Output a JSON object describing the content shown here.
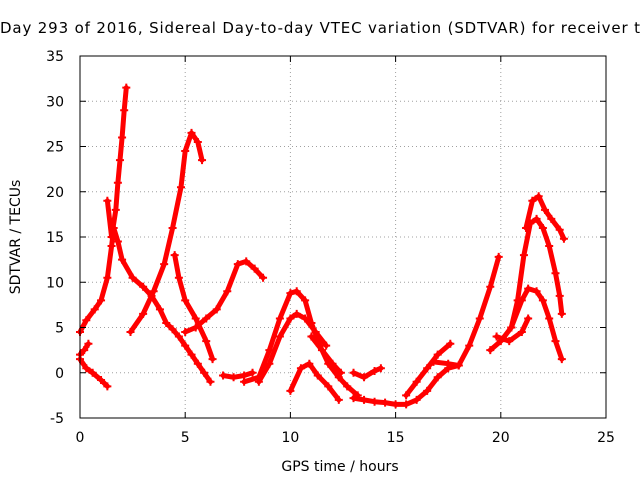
{
  "chart_data": {
    "type": "scatter",
    "title": "Day 293 of 2016, Sidereal Day-to-day VTEC variation (SDTVAR) for receiver t",
    "xlabel": "GPS time / hours",
    "ylabel": "SDTVAR / TECUs",
    "xlim": [
      0,
      25
    ],
    "ylim": [
      -5,
      35
    ],
    "xticks": [
      "0",
      "5",
      "10",
      "15",
      "20",
      "25"
    ],
    "yticks": [
      "-5",
      "0",
      "5",
      "10",
      "15",
      "20",
      "25",
      "30",
      "35"
    ],
    "grid": true,
    "marker": "plus",
    "color": "#ff0000",
    "series": [
      {
        "x": [
          0.0,
          0.3,
          0.7,
          1.0,
          1.3,
          1.5,
          1.6,
          1.8,
          2.0,
          2.5,
          3.0,
          3.4,
          3.8,
          4.1,
          4.4,
          4.7,
          5.0,
          5.3,
          5.6,
          5.9,
          6.2
        ],
        "y": [
          4.5,
          5.8,
          7.0,
          8.0,
          10.5,
          14.0,
          16.0,
          14.5,
          12.5,
          10.5,
          9.5,
          8.5,
          7.0,
          5.5,
          4.8,
          4.0,
          3.0,
          2.0,
          1.0,
          0.0,
          -1.0
        ]
      },
      {
        "x": [
          1.3,
          1.5,
          1.7,
          1.8,
          1.9,
          2.0,
          2.1,
          2.2
        ],
        "y": [
          19.0,
          15.0,
          18.0,
          21.0,
          23.5,
          26.0,
          29.0,
          31.5
        ]
      },
      {
        "x": [
          0.0,
          0.3,
          0.6,
          1.0,
          1.3
        ],
        "y": [
          1.5,
          0.5,
          0.0,
          -0.8,
          -1.5
        ]
      },
      {
        "x": [
          0.0,
          0.2,
          0.4
        ],
        "y": [
          2.0,
          2.5,
          3.2
        ]
      },
      {
        "x": [
          2.4,
          3.0,
          3.5,
          4.0,
          4.4,
          4.8,
          5.0,
          5.3,
          5.6,
          5.8
        ],
        "y": [
          4.5,
          6.5,
          9.0,
          12.0,
          16.0,
          20.5,
          24.5,
          26.5,
          25.5,
          23.5
        ]
      },
      {
        "x": [
          4.5,
          4.7,
          5.0,
          5.5,
          6.0,
          6.3
        ],
        "y": [
          13.0,
          10.5,
          8.0,
          6.0,
          3.5,
          1.5
        ]
      },
      {
        "x": [
          5.0,
          5.5,
          6.0,
          6.5,
          7.0,
          7.5,
          7.9,
          8.3,
          8.7
        ],
        "y": [
          4.5,
          5.0,
          6.0,
          7.0,
          9.0,
          12.0,
          12.3,
          11.5,
          10.5
        ]
      },
      {
        "x": [
          6.8,
          7.3,
          7.8,
          8.2
        ],
        "y": [
          -0.3,
          -0.5,
          -0.3,
          0.0
        ]
      },
      {
        "x": [
          7.8,
          8.5,
          9.0,
          9.5,
          10.0,
          10.3,
          10.7,
          11.0,
          11.4,
          11.8,
          12.3,
          12.7,
          13.2
        ],
        "y": [
          -1.0,
          -0.5,
          2.5,
          6.0,
          8.8,
          9.0,
          8.0,
          5.5,
          3.0,
          1.0,
          -0.5,
          -1.5,
          -2.5
        ]
      },
      {
        "x": [
          8.5,
          9.0,
          9.5,
          10.0,
          10.3,
          10.7,
          11.2,
          11.7
        ],
        "y": [
          -1.0,
          1.0,
          4.0,
          6.0,
          6.5,
          6.0,
          4.5,
          3.0
        ]
      },
      {
        "x": [
          10.0,
          10.5,
          10.9,
          11.3,
          11.8,
          12.3
        ],
        "y": [
          -2.0,
          0.5,
          1.0,
          -0.3,
          -1.5,
          -3.0
        ]
      },
      {
        "x": [
          11.0,
          11.5,
          12.0,
          12.4
        ],
        "y": [
          4.0,
          2.5,
          1.0,
          0.0
        ]
      },
      {
        "x": [
          13.0,
          13.5,
          14.0,
          14.5,
          15.0,
          15.5,
          16.0,
          16.5,
          17.0,
          17.5,
          18.0
        ],
        "y": [
          -2.8,
          -3.0,
          -3.2,
          -3.3,
          -3.5,
          -3.5,
          -3.0,
          -2.0,
          -0.5,
          0.5,
          0.8
        ]
      },
      {
        "x": [
          13.0,
          13.5,
          14.0,
          14.3
        ],
        "y": [
          0.0,
          -0.5,
          0.2,
          0.5
        ]
      },
      {
        "x": [
          15.5,
          16.0,
          16.5,
          17.0,
          17.6
        ],
        "y": [
          -2.5,
          -1.0,
          0.5,
          2.0,
          3.2
        ]
      },
      {
        "x": [
          16.8,
          17.5,
          18.0,
          18.5,
          19.0,
          19.5,
          19.9
        ],
        "y": [
          1.2,
          1.0,
          0.8,
          3.0,
          6.0,
          9.5,
          12.8
        ]
      },
      {
        "x": [
          19.5,
          20.0,
          20.5,
          21.0,
          21.3,
          21.7,
          22.0,
          22.3,
          22.6,
          22.9
        ],
        "y": [
          2.5,
          3.5,
          5.0,
          8.0,
          9.3,
          9.0,
          8.0,
          6.0,
          3.5,
          1.5
        ]
      },
      {
        "x": [
          20.5,
          20.8,
          21.1,
          21.4,
          21.7,
          22.0,
          22.3,
          22.6,
          22.8,
          22.9
        ],
        "y": [
          5.0,
          8.0,
          13.0,
          16.5,
          17.0,
          16.0,
          14.0,
          11.0,
          8.5,
          6.5
        ]
      },
      {
        "x": [
          21.2,
          21.5,
          21.8,
          22.1,
          22.4,
          22.8,
          23.0
        ],
        "y": [
          16.0,
          19.0,
          19.5,
          18.0,
          17.0,
          15.8,
          14.8
        ]
      },
      {
        "x": [
          19.8,
          20.4,
          21.0,
          21.3
        ],
        "y": [
          4.0,
          3.5,
          4.5,
          6.0
        ]
      }
    ]
  }
}
